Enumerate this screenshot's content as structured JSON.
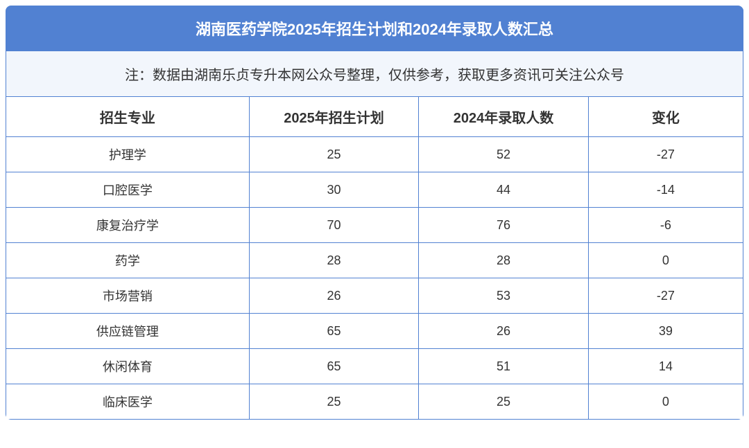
{
  "title": "湖南医药学院2025年招生计划和2024年录取人数汇总",
  "note": "注：数据由湖南乐贞专升本网公众号整理，仅供参考，获取更多资讯可关注公众号",
  "headers": {
    "major": "招生专业",
    "plan_2025": "2025年招生计划",
    "admit_2024": "2024年录取人数",
    "change": "变化"
  },
  "rows": [
    {
      "major": "护理学",
      "plan_2025": "25",
      "admit_2024": "52",
      "change": "-27"
    },
    {
      "major": "口腔医学",
      "plan_2025": "30",
      "admit_2024": "44",
      "change": "-14"
    },
    {
      "major": "康复治疗学",
      "plan_2025": "70",
      "admit_2024": "76",
      "change": "-6"
    },
    {
      "major": "药学",
      "plan_2025": "28",
      "admit_2024": "28",
      "change": "0"
    },
    {
      "major": "市场营销",
      "plan_2025": "26",
      "admit_2024": "53",
      "change": "-27"
    },
    {
      "major": "供应链管理",
      "plan_2025": "65",
      "admit_2024": "26",
      "change": "39"
    },
    {
      "major": "休闲体育",
      "plan_2025": "65",
      "admit_2024": "51",
      "change": "14"
    },
    {
      "major": "临床医学",
      "plan_2025": "25",
      "admit_2024": "25",
      "change": "0"
    }
  ],
  "colors": {
    "header_bg": "#5181d2",
    "header_text": "#ffffff",
    "note_bg": "#f2f6fc",
    "cell_bg": "#ffffff",
    "text": "#333333",
    "border": "#5181d2"
  },
  "typography": {
    "title_fontsize": 22,
    "note_fontsize": 20,
    "header_fontsize": 20,
    "cell_fontsize": 18,
    "font_family": "Microsoft YaHei"
  }
}
